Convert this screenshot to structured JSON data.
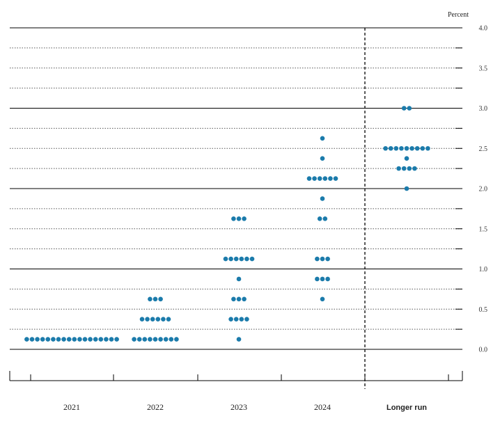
{
  "chart_data": {
    "type": "scatter",
    "title": "",
    "ylabel": "Percent",
    "ylim": [
      -0.5,
      4.0
    ],
    "yticks": [
      "4.0",
      "3.5",
      "3.0",
      "2.5",
      "2.0",
      "1.5",
      "1.0",
      "0.5",
      "0.0"
    ],
    "grid": true,
    "categories": [
      "2021",
      "2022",
      "2023",
      "2024",
      "Longer run"
    ],
    "columns": [
      {
        "label": "2021",
        "dots": [
          {
            "value": 0.125,
            "count": 18
          }
        ]
      },
      {
        "label": "2022",
        "dots": [
          {
            "value": 0.625,
            "count": 3
          },
          {
            "value": 0.375,
            "count": 6
          },
          {
            "value": 0.125,
            "count": 9
          }
        ]
      },
      {
        "label": "2023",
        "dots": [
          {
            "value": 1.625,
            "count": 3
          },
          {
            "value": 1.125,
            "count": 6
          },
          {
            "value": 0.875,
            "count": 1
          },
          {
            "value": 0.625,
            "count": 3
          },
          {
            "value": 0.375,
            "count": 4
          },
          {
            "value": 0.125,
            "count": 1
          }
        ]
      },
      {
        "label": "2024",
        "dots": [
          {
            "value": 2.625,
            "count": 1
          },
          {
            "value": 2.375,
            "count": 1
          },
          {
            "value": 2.125,
            "count": 6
          },
          {
            "value": 1.875,
            "count": 1
          },
          {
            "value": 1.625,
            "count": 2
          },
          {
            "value": 1.125,
            "count": 3
          },
          {
            "value": 0.875,
            "count": 3
          },
          {
            "value": 0.625,
            "count": 1
          }
        ]
      },
      {
        "label": "Longer run",
        "dots": [
          {
            "value": 3.0,
            "count": 2
          },
          {
            "value": 2.5,
            "count": 9
          },
          {
            "value": 2.375,
            "count": 1
          },
          {
            "value": 2.25,
            "count": 4
          },
          {
            "value": 2.0,
            "count": 1
          }
        ]
      }
    ],
    "dot_color": "#1b7bab",
    "separator": "dashed vertical line between 2024 and Longer run"
  }
}
